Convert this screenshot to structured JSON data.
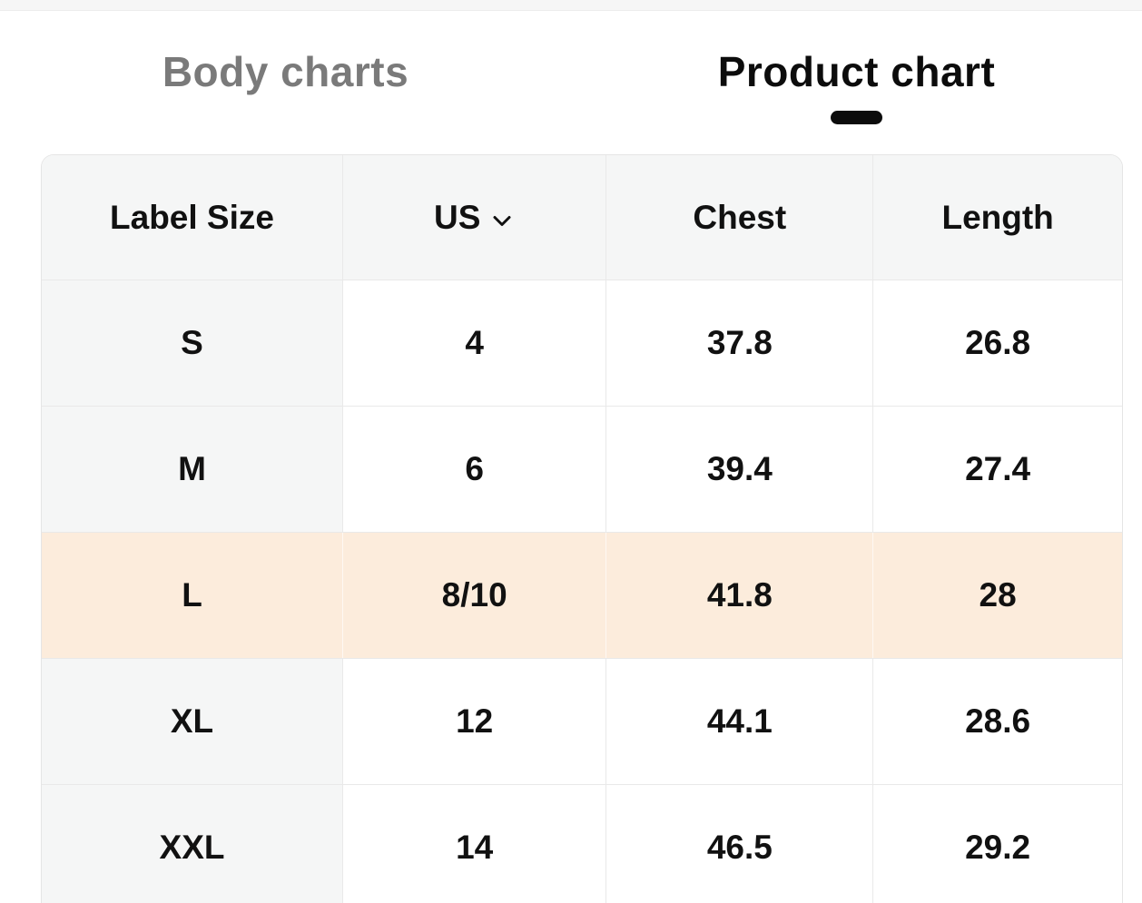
{
  "tabs": {
    "items": [
      {
        "label": "Body charts",
        "active": false
      },
      {
        "label": "Product chart",
        "active": true
      }
    ]
  },
  "table": {
    "columns": [
      {
        "label": "Label Size",
        "dropdown": false
      },
      {
        "label": "US",
        "dropdown": true
      },
      {
        "label": "Chest",
        "dropdown": false
      },
      {
        "label": "Length",
        "dropdown": false
      }
    ],
    "rows": [
      {
        "cells": [
          "S",
          "4",
          "37.8",
          "26.8"
        ],
        "highlighted": false
      },
      {
        "cells": [
          "M",
          "6",
          "39.4",
          "27.4"
        ],
        "highlighted": false
      },
      {
        "cells": [
          "L",
          "8/10",
          "41.8",
          "28"
        ],
        "highlighted": true
      },
      {
        "cells": [
          "XL",
          "12",
          "44.1",
          "28.6"
        ],
        "highlighted": false
      },
      {
        "cells": [
          "XXL",
          "14",
          "46.5",
          "29.2"
        ],
        "highlighted": false
      }
    ]
  },
  "icons": {
    "us_header": "chevron-down-icon"
  },
  "colors": {
    "row_highlight": "#fcecdc",
    "header_bg": "#f5f6f6",
    "label_col_bg": "#f5f6f6",
    "border": "#e9e9e9",
    "tab_inactive": "#7a7a7a",
    "tab_active": "#0c0c0c",
    "indicator": "#0c0c0c",
    "top_strip": "#f6f6f6"
  }
}
